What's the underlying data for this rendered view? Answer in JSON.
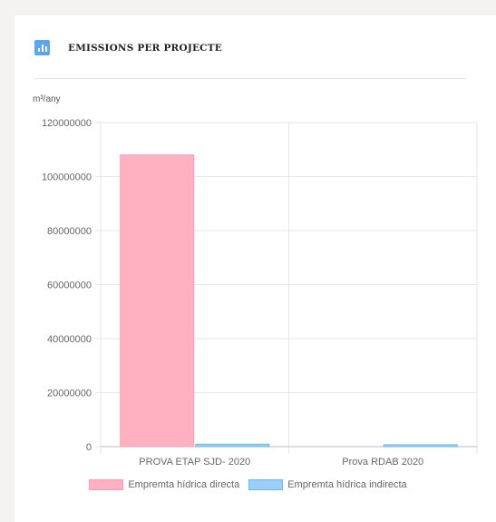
{
  "header": {
    "title": "EMISSIONS PER PROJECTE",
    "icon": "bar-chart-icon"
  },
  "colors": {
    "accent": "#5aa7f0",
    "series_direct": "#ffb1c1",
    "series_direct_border": "#ff9bb0",
    "series_indirect": "#9ad0f5",
    "series_indirect_border": "#6cb8ec"
  },
  "chart_data": {
    "type": "bar",
    "categories": [
      "PROVA ETAP SJD- 2020",
      "Prova RDAB 2020"
    ],
    "series": [
      {
        "name": "Empremta hídrica directa",
        "values": [
          108000000,
          0
        ]
      },
      {
        "name": "Empremta hídrica indirecta",
        "values": [
          900000,
          700000
        ]
      }
    ],
    "ylabel": "m³/any",
    "xlabel": "",
    "ylim": [
      0,
      120000000
    ],
    "yticks": [
      "0",
      "20000000",
      "40000000",
      "60000000",
      "80000000",
      "100000000",
      "120000000"
    ],
    "grid": true,
    "legend_position": "bottom"
  }
}
